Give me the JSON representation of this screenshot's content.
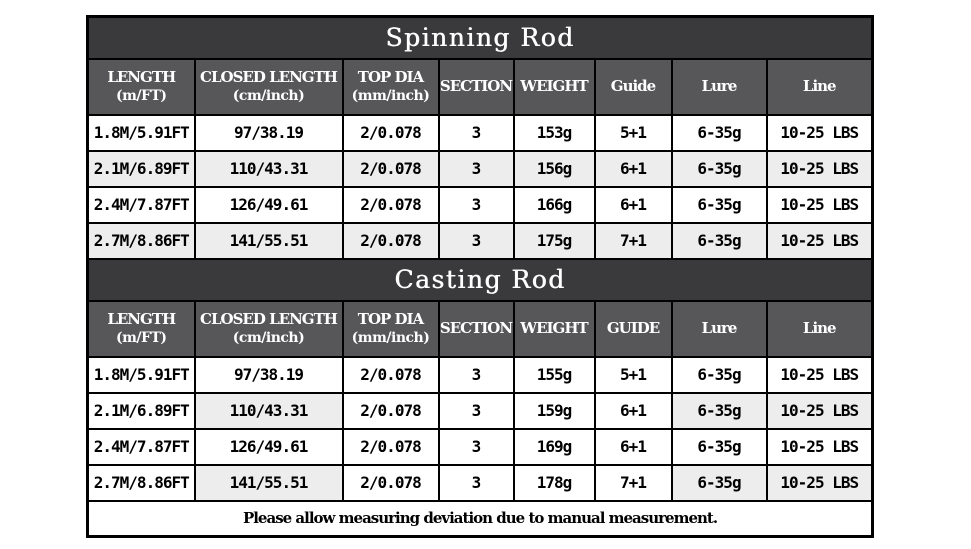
{
  "colors": {
    "title_bar_bg": "#3a3a3c",
    "header_bg": "#57575a",
    "alt_row_bg": "#ededed",
    "border": "#000000",
    "light_text": "#ffffff",
    "dark_text": "#000000"
  },
  "tables": [
    {
      "title": "Spinning Rod",
      "headers": [
        {
          "main": "LENGTH",
          "sub": "(m/FT)"
        },
        {
          "main": "CLOSED LENGTH",
          "sub": "(cm/inch)"
        },
        {
          "main": "TOP DIA",
          "sub": "(mm/inch)"
        },
        {
          "main": "SECTION"
        },
        {
          "main": "WEIGHT"
        },
        {
          "main": "Guide"
        },
        {
          "main": "Lure"
        },
        {
          "main": "Line"
        }
      ],
      "rows": [
        [
          "1.8M/5.91FT",
          "97/38.19",
          "2/0.078",
          "3",
          "153g",
          "5+1",
          "6-35g",
          "10-25 LBS"
        ],
        [
          "2.1M/6.89FT",
          "110/43.31",
          "2/0.078",
          "3",
          "156g",
          "6+1",
          "6-35g",
          "10-25 LBS"
        ],
        [
          "2.4M/7.87FT",
          "126/49.61",
          "2/0.078",
          "3",
          "166g",
          "6+1",
          "6-35g",
          "10-25 LBS"
        ],
        [
          "2.7M/8.86FT",
          "141/55.51",
          "2/0.078",
          "3",
          "175g",
          "7+1",
          "6-35g",
          "10-25 LBS"
        ]
      ],
      "alt_shading": {
        "mode": "row"
      }
    },
    {
      "title": "Casting Rod",
      "headers": [
        {
          "main": "LENGTH",
          "sub": "(m/FT)"
        },
        {
          "main": "CLOSED LENGTH",
          "sub": "(cm/inch)"
        },
        {
          "main": "TOP DIA",
          "sub": "(mm/inch)"
        },
        {
          "main": "SECTION"
        },
        {
          "main": "WEIGHT"
        },
        {
          "main": "GUIDE"
        },
        {
          "main": "Lure"
        },
        {
          "main": "Line"
        }
      ],
      "rows": [
        [
          "1.8M/5.91FT",
          "97/38.19",
          "2/0.078",
          "3",
          "155g",
          "5+1",
          "6-35g",
          "10-25 LBS"
        ],
        [
          "2.1M/6.89FT",
          "110/43.31",
          "2/0.078",
          "3",
          "159g",
          "6+1",
          "6-35g",
          "10-25 LBS"
        ],
        [
          "2.4M/7.87FT",
          "126/49.61",
          "2/0.078",
          "3",
          "169g",
          "6+1",
          "6-35g",
          "10-25 LBS"
        ],
        [
          "2.7M/8.86FT",
          "141/55.51",
          "2/0.078",
          "3",
          "178g",
          "7+1",
          "6-35g",
          "10-25 LBS"
        ]
      ],
      "alt_shading": {
        "mode": "columns",
        "columns": [
          1,
          6,
          7
        ]
      }
    }
  ],
  "note": "Please allow measuring deviation due to manual measurement."
}
